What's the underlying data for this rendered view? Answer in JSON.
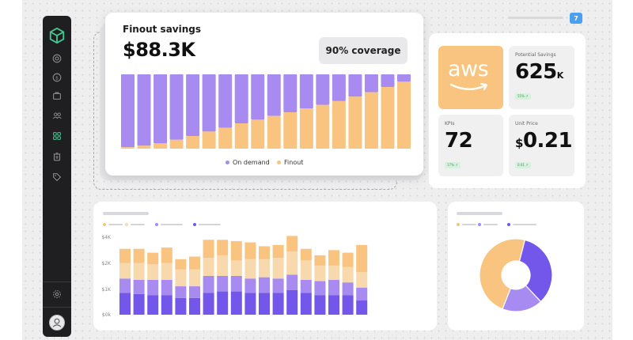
{
  "colors": {
    "on_demand": "#a78bf0",
    "finout": "#f8c47f",
    "bar_light_purple": "#a78bf0",
    "bar_dark_purple": "#7356ea",
    "bar_light_orange": "#f8d8ad",
    "accent_green": "#42c98f",
    "badge_blue": "#4a9ff0"
  },
  "header": {
    "notification_count": "7"
  },
  "sidebar": {
    "icons": [
      "cube-logo-icon",
      "target-icon",
      "dollar-icon",
      "briefcase-icon",
      "users-icon",
      "grid-icon",
      "trash-icon",
      "tag-icon",
      "settings-icon",
      "user-avatar-icon"
    ],
    "active_icon": "grid-icon"
  },
  "savings_card": {
    "title": "Finout savings",
    "amount": "$88.3K",
    "coverage": "90% coverage",
    "legend": [
      {
        "label": "On demand",
        "color": "#a78bf0"
      },
      {
        "label": "Finout",
        "color": "#f8c47f"
      }
    ]
  },
  "kpi_panel": {
    "aws_label": "aws",
    "potential_savings": {
      "label": "Potential Savings",
      "value": "625",
      "unit": "K",
      "badge": "55% ↗"
    },
    "kpis": {
      "label": "KPIs",
      "value": "72",
      "badge": "17% ↗"
    },
    "unit_price": {
      "label": "Unit Price",
      "currency": "$",
      "value": "0.21",
      "badge": "0.01 ↗"
    }
  },
  "chart_data": [
    {
      "type": "bar",
      "stacked": true,
      "series": [
        {
          "name": "Finout",
          "values": [
            2,
            4,
            7,
            12,
            17,
            23,
            28,
            34,
            39,
            44,
            49,
            54,
            59,
            64,
            70,
            76,
            83,
            90
          ]
        },
        {
          "name": "On demand",
          "values": [
            98,
            96,
            93,
            88,
            83,
            77,
            72,
            66,
            61,
            56,
            51,
            46,
            41,
            36,
            30,
            24,
            17,
            10
          ]
        }
      ]
    },
    {
      "type": "bar",
      "stacked": true,
      "yticks": [
        "$0k",
        "$1K",
        "$2K",
        "$4K"
      ],
      "ylim": [
        0,
        3000
      ],
      "series": [
        {
          "values": [
            850,
            800,
            750,
            750,
            650,
            650,
            850,
            900,
            900,
            850,
            850,
            850,
            950,
            850,
            750,
            750,
            750,
            550
          ]
        },
        {
          "values": [
            550,
            550,
            600,
            600,
            450,
            450,
            650,
            600,
            600,
            550,
            600,
            550,
            600,
            500,
            550,
            600,
            500,
            500
          ]
        },
        {
          "values": [
            600,
            650,
            600,
            650,
            650,
            650,
            700,
            800,
            600,
            750,
            700,
            800,
            900,
            750,
            600,
            550,
            600,
            600
          ]
        },
        {
          "values": [
            550,
            550,
            450,
            600,
            400,
            500,
            700,
            600,
            750,
            650,
            500,
            500,
            600,
            450,
            400,
            600,
            550,
            1050
          ]
        }
      ]
    },
    {
      "type": "pie",
      "donut": true,
      "slices": [
        {
          "value": 48,
          "color": "#f8c47f"
        },
        {
          "value": 34,
          "color": "#7356ea"
        },
        {
          "value": 18,
          "color": "#a78bf0"
        }
      ]
    }
  ]
}
